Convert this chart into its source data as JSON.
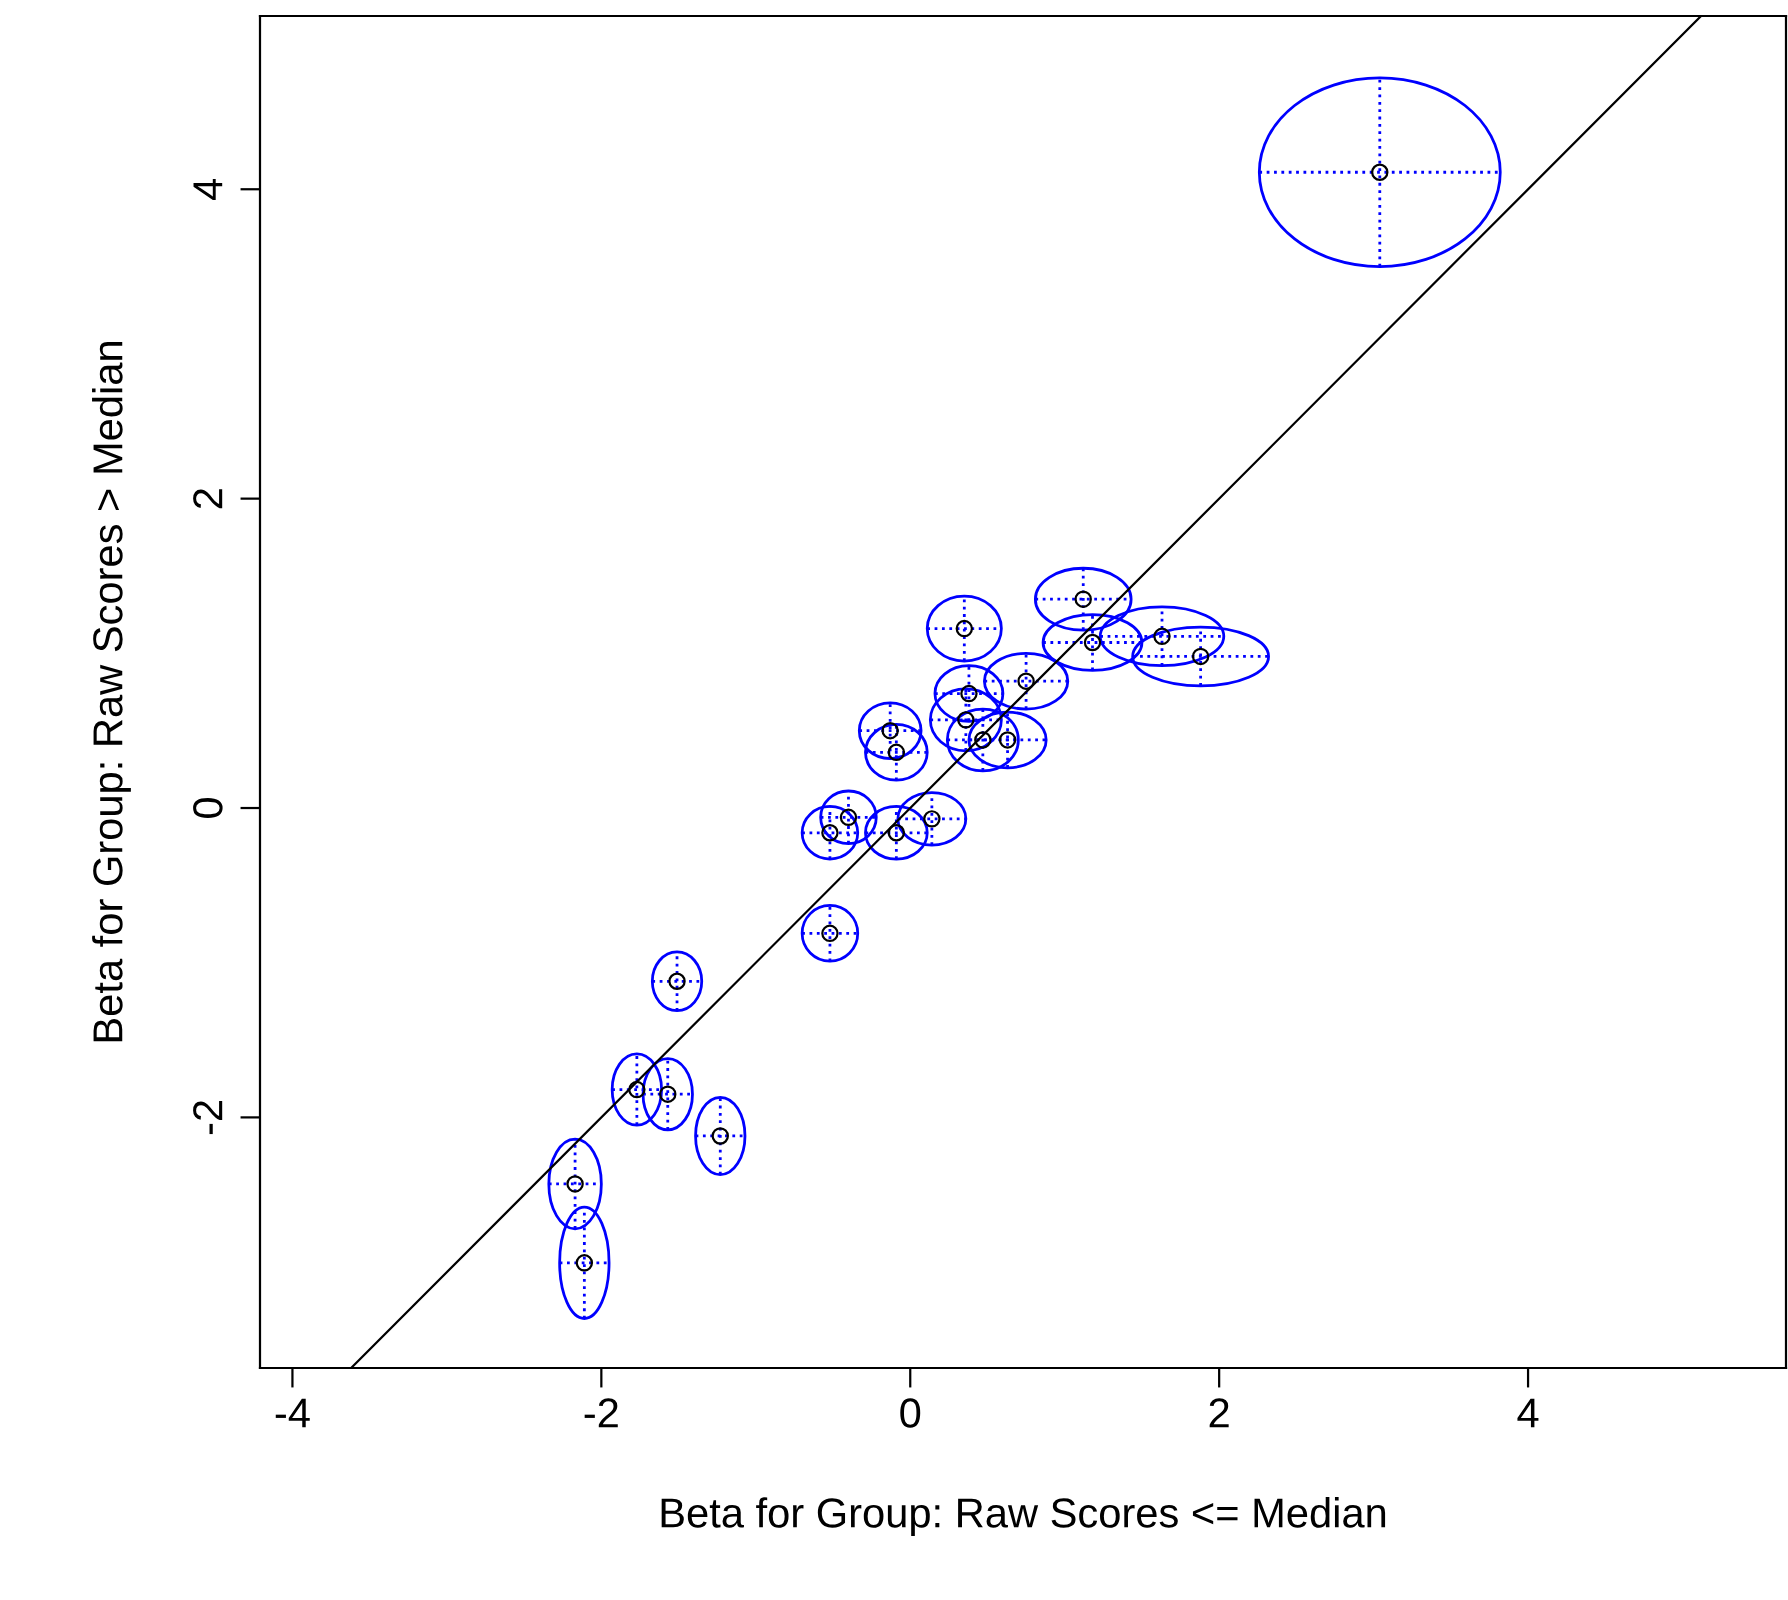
{
  "chart_data": {
    "type": "scatter",
    "xlabel": "Beta for Group: Raw Scores <= Median",
    "ylabel": "Beta for Group: Raw Scores > Median",
    "xlim": [
      -4.21,
      5.67
    ],
    "ylim": [
      -3.62,
      5.12
    ],
    "xticks": [
      -4,
      -2,
      0,
      2,
      4
    ],
    "yticks": [
      -2,
      0,
      2,
      4
    ],
    "grid": false,
    "series": [
      {
        "color": "#000000",
        "marker": "circle",
        "x": [
          3.04,
          1.12,
          0.35,
          1.63,
          1.18,
          1.88,
          0.75,
          0.38,
          0.36,
          -0.13,
          -0.09,
          0.47,
          0.63,
          -0.4,
          -0.52,
          -0.09,
          0.14,
          -0.52,
          -1.51,
          -1.77,
          -1.57,
          -1.23,
          -2.17,
          -2.11
        ],
        "values": [
          4.11,
          1.35,
          1.16,
          1.11,
          1.07,
          0.98,
          0.82,
          0.74,
          0.57,
          0.5,
          0.36,
          0.44,
          0.44,
          -0.06,
          -0.16,
          -0.16,
          -0.07,
          -0.81,
          -1.12,
          -1.82,
          -1.85,
          -2.12,
          -2.43,
          -2.94
        ],
        "xerrors": [
          0.78,
          0.31,
          0.24,
          0.4,
          0.32,
          0.44,
          0.27,
          0.22,
          0.23,
          0.2,
          0.2,
          0.23,
          0.25,
          0.18,
          0.18,
          0.2,
          0.22,
          0.18,
          0.16,
          0.16,
          0.16,
          0.16,
          0.17,
          0.16
        ],
        "errors": [
          0.61,
          0.2,
          0.21,
          0.19,
          0.18,
          0.19,
          0.18,
          0.18,
          0.2,
          0.18,
          0.18,
          0.2,
          0.18,
          0.17,
          0.17,
          0.17,
          0.17,
          0.18,
          0.19,
          0.23,
          0.23,
          0.25,
          0.29,
          0.36
        ]
      },
      {
        "type": "line",
        "color": "#000000",
        "line_style": "solid",
        "x": [
          -3.62,
          5.12
        ],
        "values": [
          -3.62,
          5.12
        ]
      }
    ]
  }
}
